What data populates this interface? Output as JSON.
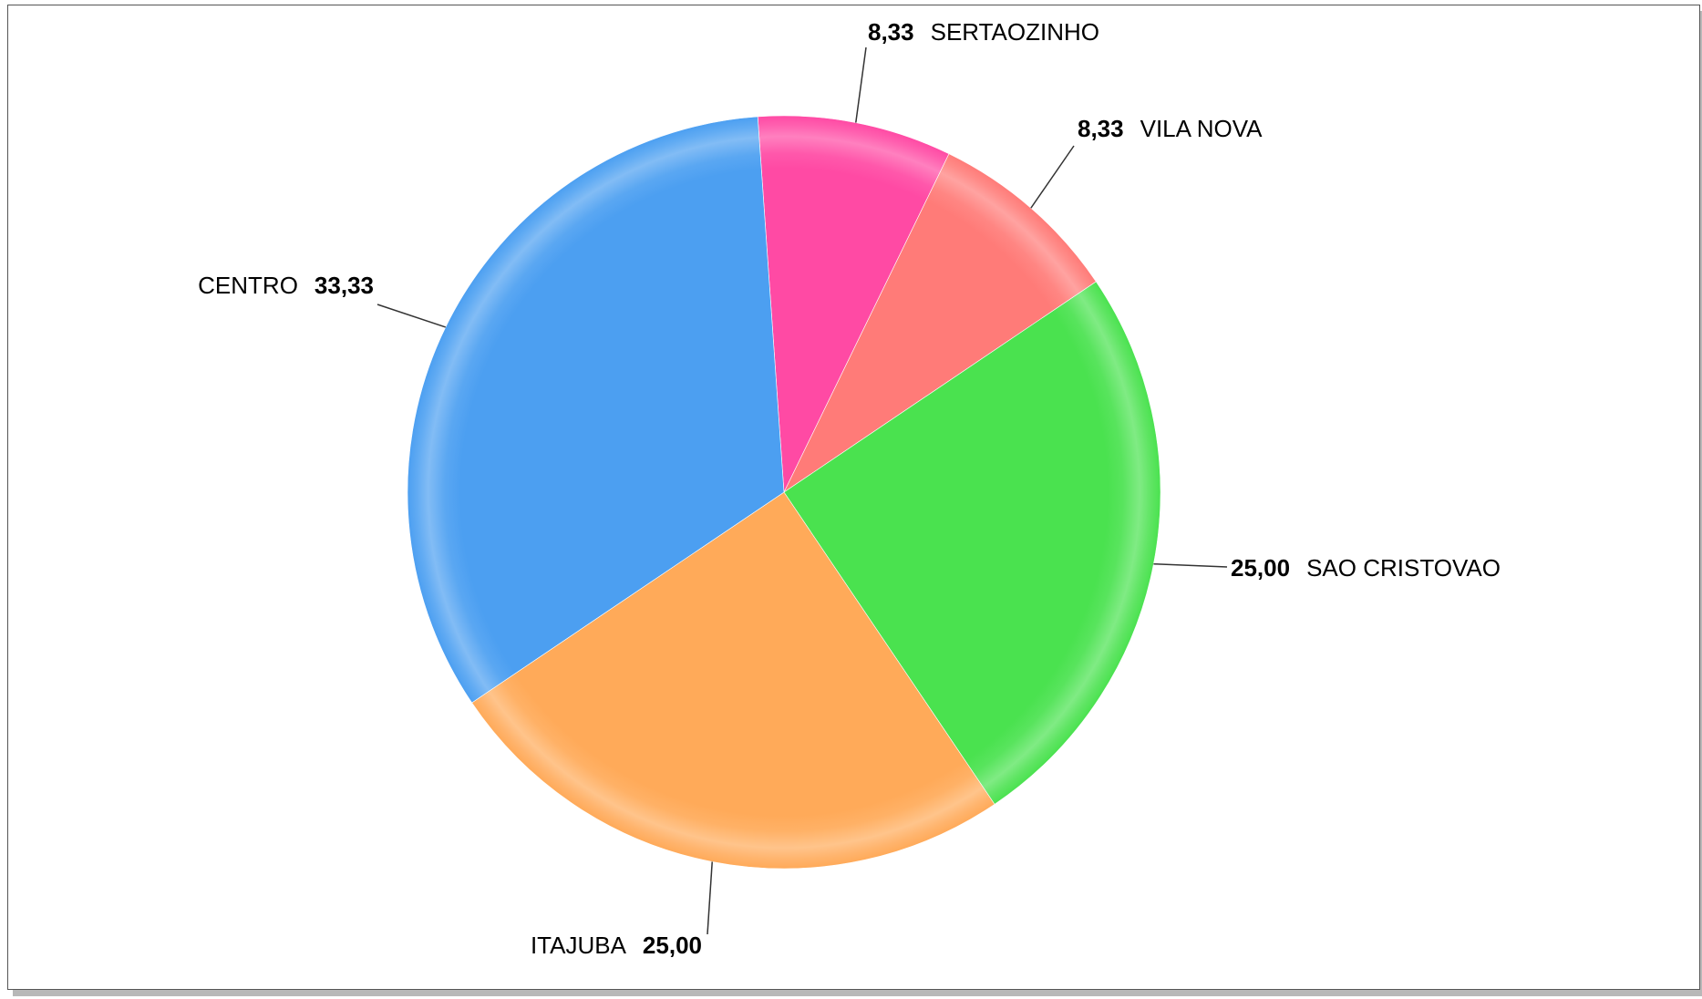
{
  "chart_data": {
    "type": "pie",
    "title": "",
    "categories": [
      "SERTAOZINHO",
      "VILA NOVA",
      "SAO CRISTOVAO",
      "ITAJUBA",
      "CENTRO"
    ],
    "values": [
      8.33,
      8.33,
      25.0,
      25.0,
      33.33
    ],
    "value_labels": [
      "8,33",
      "8,33",
      "25,00",
      "25,00",
      "33,33"
    ],
    "colors": [
      "#ff4aa4",
      "#ff7b78",
      "#4ae24f",
      "#ffaa59",
      "#4c9ff1"
    ],
    "start_angle_deg": -94,
    "direction": "clockwise",
    "legend": "none"
  }
}
